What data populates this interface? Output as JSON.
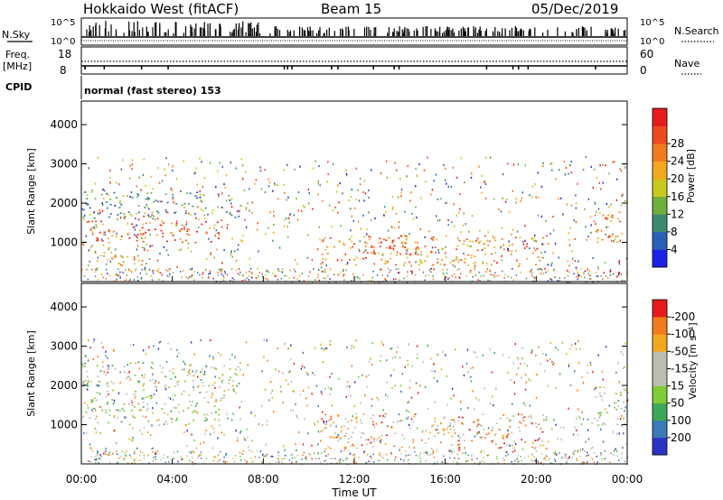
{
  "header": {
    "title": "Hokkaido West (fitACF)",
    "beam": "Beam 15",
    "date": "05/Dec/2019"
  },
  "noise_panel": {
    "left_label": "N.Sky",
    "right_label": "N.Search",
    "left_ticks": [
      "10^5",
      "10^0"
    ],
    "right_ticks": [
      "10^5",
      "10^0"
    ]
  },
  "freq_panel": {
    "left_label_1": "Freq.",
    "left_label_2": "[MHz]",
    "left_ticks": [
      "18",
      "8"
    ],
    "right_label": "Nave",
    "right_ticks": [
      "60",
      "0"
    ]
  },
  "cpid_panel": {
    "label": "CPID",
    "text": "normal (fast stereo) 153"
  },
  "chart_data": [
    {
      "type": "heatmap",
      "name": "power",
      "ylabel": "Slant Range [km]",
      "ylim": [
        0,
        4600
      ],
      "yticks": [
        1000,
        2000,
        3000,
        4000
      ],
      "xlim": [
        0,
        24
      ],
      "colorbar": {
        "label": "Power [dB]",
        "ticks": [
          "4",
          "8",
          "12",
          "16",
          "20",
          "24",
          "28"
        ],
        "colors": [
          "#1b22e6",
          "#2a5fb8",
          "#3a8a72",
          "#6fae3c",
          "#c8c81e",
          "#f3a81f",
          "#f37a1d",
          "#ef4a1b",
          "#e51c19"
        ]
      },
      "regions": [
        {
          "t0": 0.0,
          "t1": 6.2,
          "r0": 1000,
          "r1": 1600,
          "level": 0.85
        },
        {
          "t0": 0.0,
          "t1": 7.0,
          "r0": 1600,
          "r1": 2300,
          "level": 0.3
        },
        {
          "t0": 0.5,
          "t1": 3.0,
          "r0": 400,
          "r1": 900,
          "level": 0.6
        },
        {
          "t0": 10.5,
          "t1": 20.5,
          "r0": 400,
          "r1": 1200,
          "level": 0.7
        },
        {
          "t0": 12.5,
          "t1": 15.5,
          "r0": 700,
          "r1": 1200,
          "level": 0.9
        },
        {
          "t0": 22.5,
          "t1": 24.0,
          "r0": 1000,
          "r1": 2000,
          "level": 0.7
        }
      ]
    },
    {
      "type": "heatmap",
      "name": "velocity",
      "ylabel": "Slant Range [km]",
      "ylim": [
        0,
        4600
      ],
      "yticks": [
        1000,
        2000,
        3000,
        4000
      ],
      "xlim": [
        0,
        24
      ],
      "xticks": [
        "00:00",
        "04:00",
        "08:00",
        "12:00",
        "16:00",
        "20:00",
        "00:00"
      ],
      "xlabel": "Time UT",
      "colorbar": {
        "label": "Velocity [m s⁻¹]",
        "ticks": [
          "200",
          "100",
          "50",
          "15",
          "-15",
          "-50",
          "-100",
          "-200"
        ],
        "colors": [
          "#2a32c8",
          "#3a7ab8",
          "#3aa856",
          "#7fcc36",
          "#bdbdb2",
          "#bdbdb2",
          "#f3a81f",
          "#f37a1d",
          "#e51c19"
        ]
      },
      "regions": [
        {
          "t0": 0.0,
          "t1": 6.2,
          "r0": 1000,
          "r1": 1700,
          "level": 0.5
        },
        {
          "t0": 0.0,
          "t1": 7.0,
          "r0": 1700,
          "r1": 2600,
          "level": 0.5
        },
        {
          "t0": 10.5,
          "t1": 20.5,
          "r0": 400,
          "r1": 1300,
          "level": 0.75
        },
        {
          "t0": 22.5,
          "t1": 24.0,
          "r0": 1000,
          "r1": 2000,
          "level": 0.5
        }
      ]
    }
  ]
}
